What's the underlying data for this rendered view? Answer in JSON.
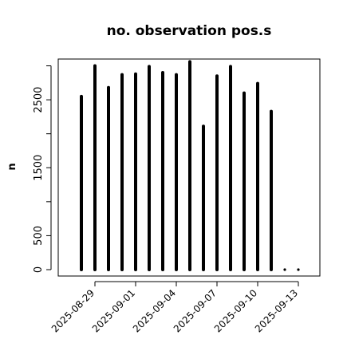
{
  "chart_data": {
    "type": "bar",
    "title": "no. observation pos.s",
    "xlabel": "",
    "ylabel": "n",
    "ylim": [
      0,
      3100
    ],
    "yticks": [
      0,
      500,
      1500,
      2500
    ],
    "grid": false,
    "x": [
      "2025-08-28",
      "2025-08-29",
      "2025-08-30",
      "2025-08-31",
      "2025-09-01",
      "2025-09-02",
      "2025-09-03",
      "2025-09-04",
      "2025-09-05",
      "2025-09-06",
      "2025-09-07",
      "2025-09-08",
      "2025-09-09",
      "2025-09-10",
      "2025-09-11",
      "2025-09-12",
      "2025-09-13"
    ],
    "values": [
      2550,
      3000,
      2680,
      2870,
      2880,
      2990,
      2900,
      2870,
      3060,
      2110,
      2850,
      2990,
      2600,
      2740,
      2330,
      5,
      5
    ],
    "xtick_labels": [
      {
        "date": "2025-08-29",
        "label": "2025-08-29",
        "color": "#000000"
      },
      {
        "date": "2025-09-01",
        "label": "2025-09-01",
        "color": "#000000"
      },
      {
        "date": "2025-09-04",
        "label": "2025-09-04",
        "color": "#228B22"
      },
      {
        "date": "2025-09-07",
        "label": "2025-09-07",
        "color": "#000000"
      },
      {
        "date": "2025-09-10",
        "label": "2025-09-10",
        "color": "#000000"
      },
      {
        "date": "2025-09-13",
        "label": "2025-09-13",
        "color": "#000000"
      }
    ],
    "bar_color": "#000000"
  }
}
